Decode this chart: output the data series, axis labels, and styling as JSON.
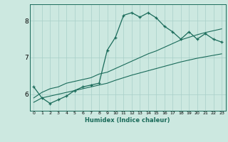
{
  "xlabel": "Humidex (Indice chaleur)",
  "bg_color": "#cce8e0",
  "grid_color": "#a8cfc8",
  "line_color": "#1a6b5a",
  "x_ticks": [
    0,
    1,
    2,
    3,
    4,
    5,
    6,
    7,
    8,
    9,
    10,
    11,
    12,
    13,
    14,
    15,
    16,
    17,
    18,
    19,
    20,
    21,
    22,
    23
  ],
  "y_ticks": [
    6,
    7,
    8
  ],
  "xlim": [
    -0.5,
    23.5
  ],
  "ylim": [
    5.55,
    8.45
  ],
  "humidex_line": [
    6.2,
    5.9,
    5.75,
    5.85,
    5.95,
    6.1,
    6.2,
    6.25,
    6.3,
    7.2,
    7.55,
    8.15,
    8.22,
    8.1,
    8.22,
    8.08,
    7.85,
    7.7,
    7.5,
    7.7,
    7.5,
    7.65,
    7.5,
    7.42
  ],
  "trend_upper": [
    5.9,
    6.05,
    6.15,
    6.2,
    6.3,
    6.35,
    6.4,
    6.45,
    6.55,
    6.6,
    6.7,
    6.8,
    6.9,
    7.0,
    7.1,
    7.18,
    7.28,
    7.38,
    7.48,
    7.55,
    7.62,
    7.68,
    7.73,
    7.78
  ],
  "trend_lower": [
    5.78,
    5.9,
    5.95,
    6.0,
    6.05,
    6.1,
    6.15,
    6.2,
    6.25,
    6.3,
    6.38,
    6.45,
    6.52,
    6.58,
    6.64,
    6.7,
    6.76,
    6.82,
    6.88,
    6.93,
    6.98,
    7.02,
    7.06,
    7.1
  ]
}
